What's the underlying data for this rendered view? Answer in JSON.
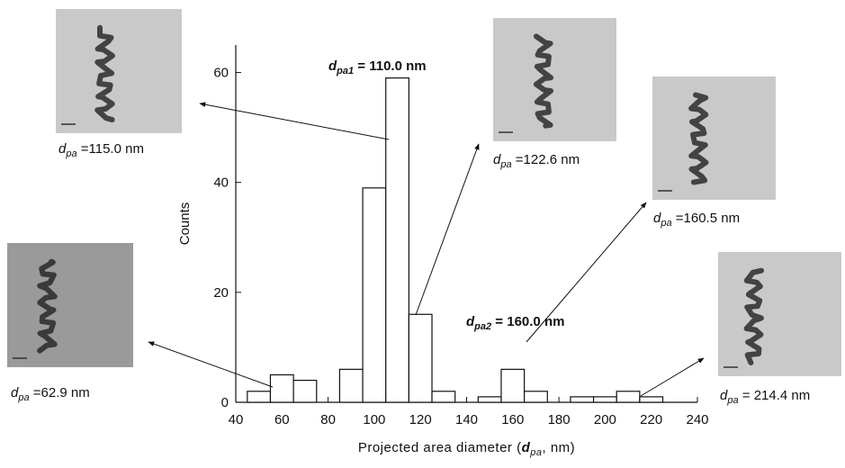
{
  "chart_data": {
    "type": "histogram",
    "bins": [
      45,
      55,
      65,
      75,
      85,
      95,
      105,
      115,
      125,
      135,
      145,
      155,
      165,
      175,
      185,
      195,
      205,
      215,
      225
    ],
    "counts": [
      2,
      5,
      4,
      0,
      6,
      39,
      59,
      16,
      2,
      0,
      1,
      6,
      2,
      0,
      1,
      1,
      2,
      1
    ],
    "color": "#ffffff",
    "xlim": [
      40,
      240
    ],
    "xticks": [
      40,
      60,
      80,
      100,
      120,
      140,
      160,
      180,
      200,
      220,
      240
    ],
    "ylim": [
      0,
      65
    ],
    "yticks": [
      0,
      20,
      40,
      60
    ],
    "y_label": "Counts",
    "x_label": {
      "before": "Projected area diameter (",
      "var": "d",
      "sub": "pa",
      "after": ", nm)"
    },
    "annotations": [
      {
        "var": "d",
        "sub": "pa1",
        "rest": " = 110.0 nm"
      },
      {
        "var": "d",
        "sub": "pa2",
        "rest": " = 160.0 nm"
      }
    ],
    "insets": [
      {
        "var": "d",
        "sub": "pa",
        "rest": " =115.0 nm"
      },
      {
        "var": "d",
        "sub": "pa",
        "rest": " =122.6 nm"
      },
      {
        "var": "d",
        "sub": "pa",
        "rest": " =160.5 nm"
      },
      {
        "var": "d",
        "sub": "pa",
        "rest": " =62.9 nm"
      },
      {
        "var": "d",
        "sub": "pa",
        "rest": " = 214.4 nm"
      }
    ]
  }
}
